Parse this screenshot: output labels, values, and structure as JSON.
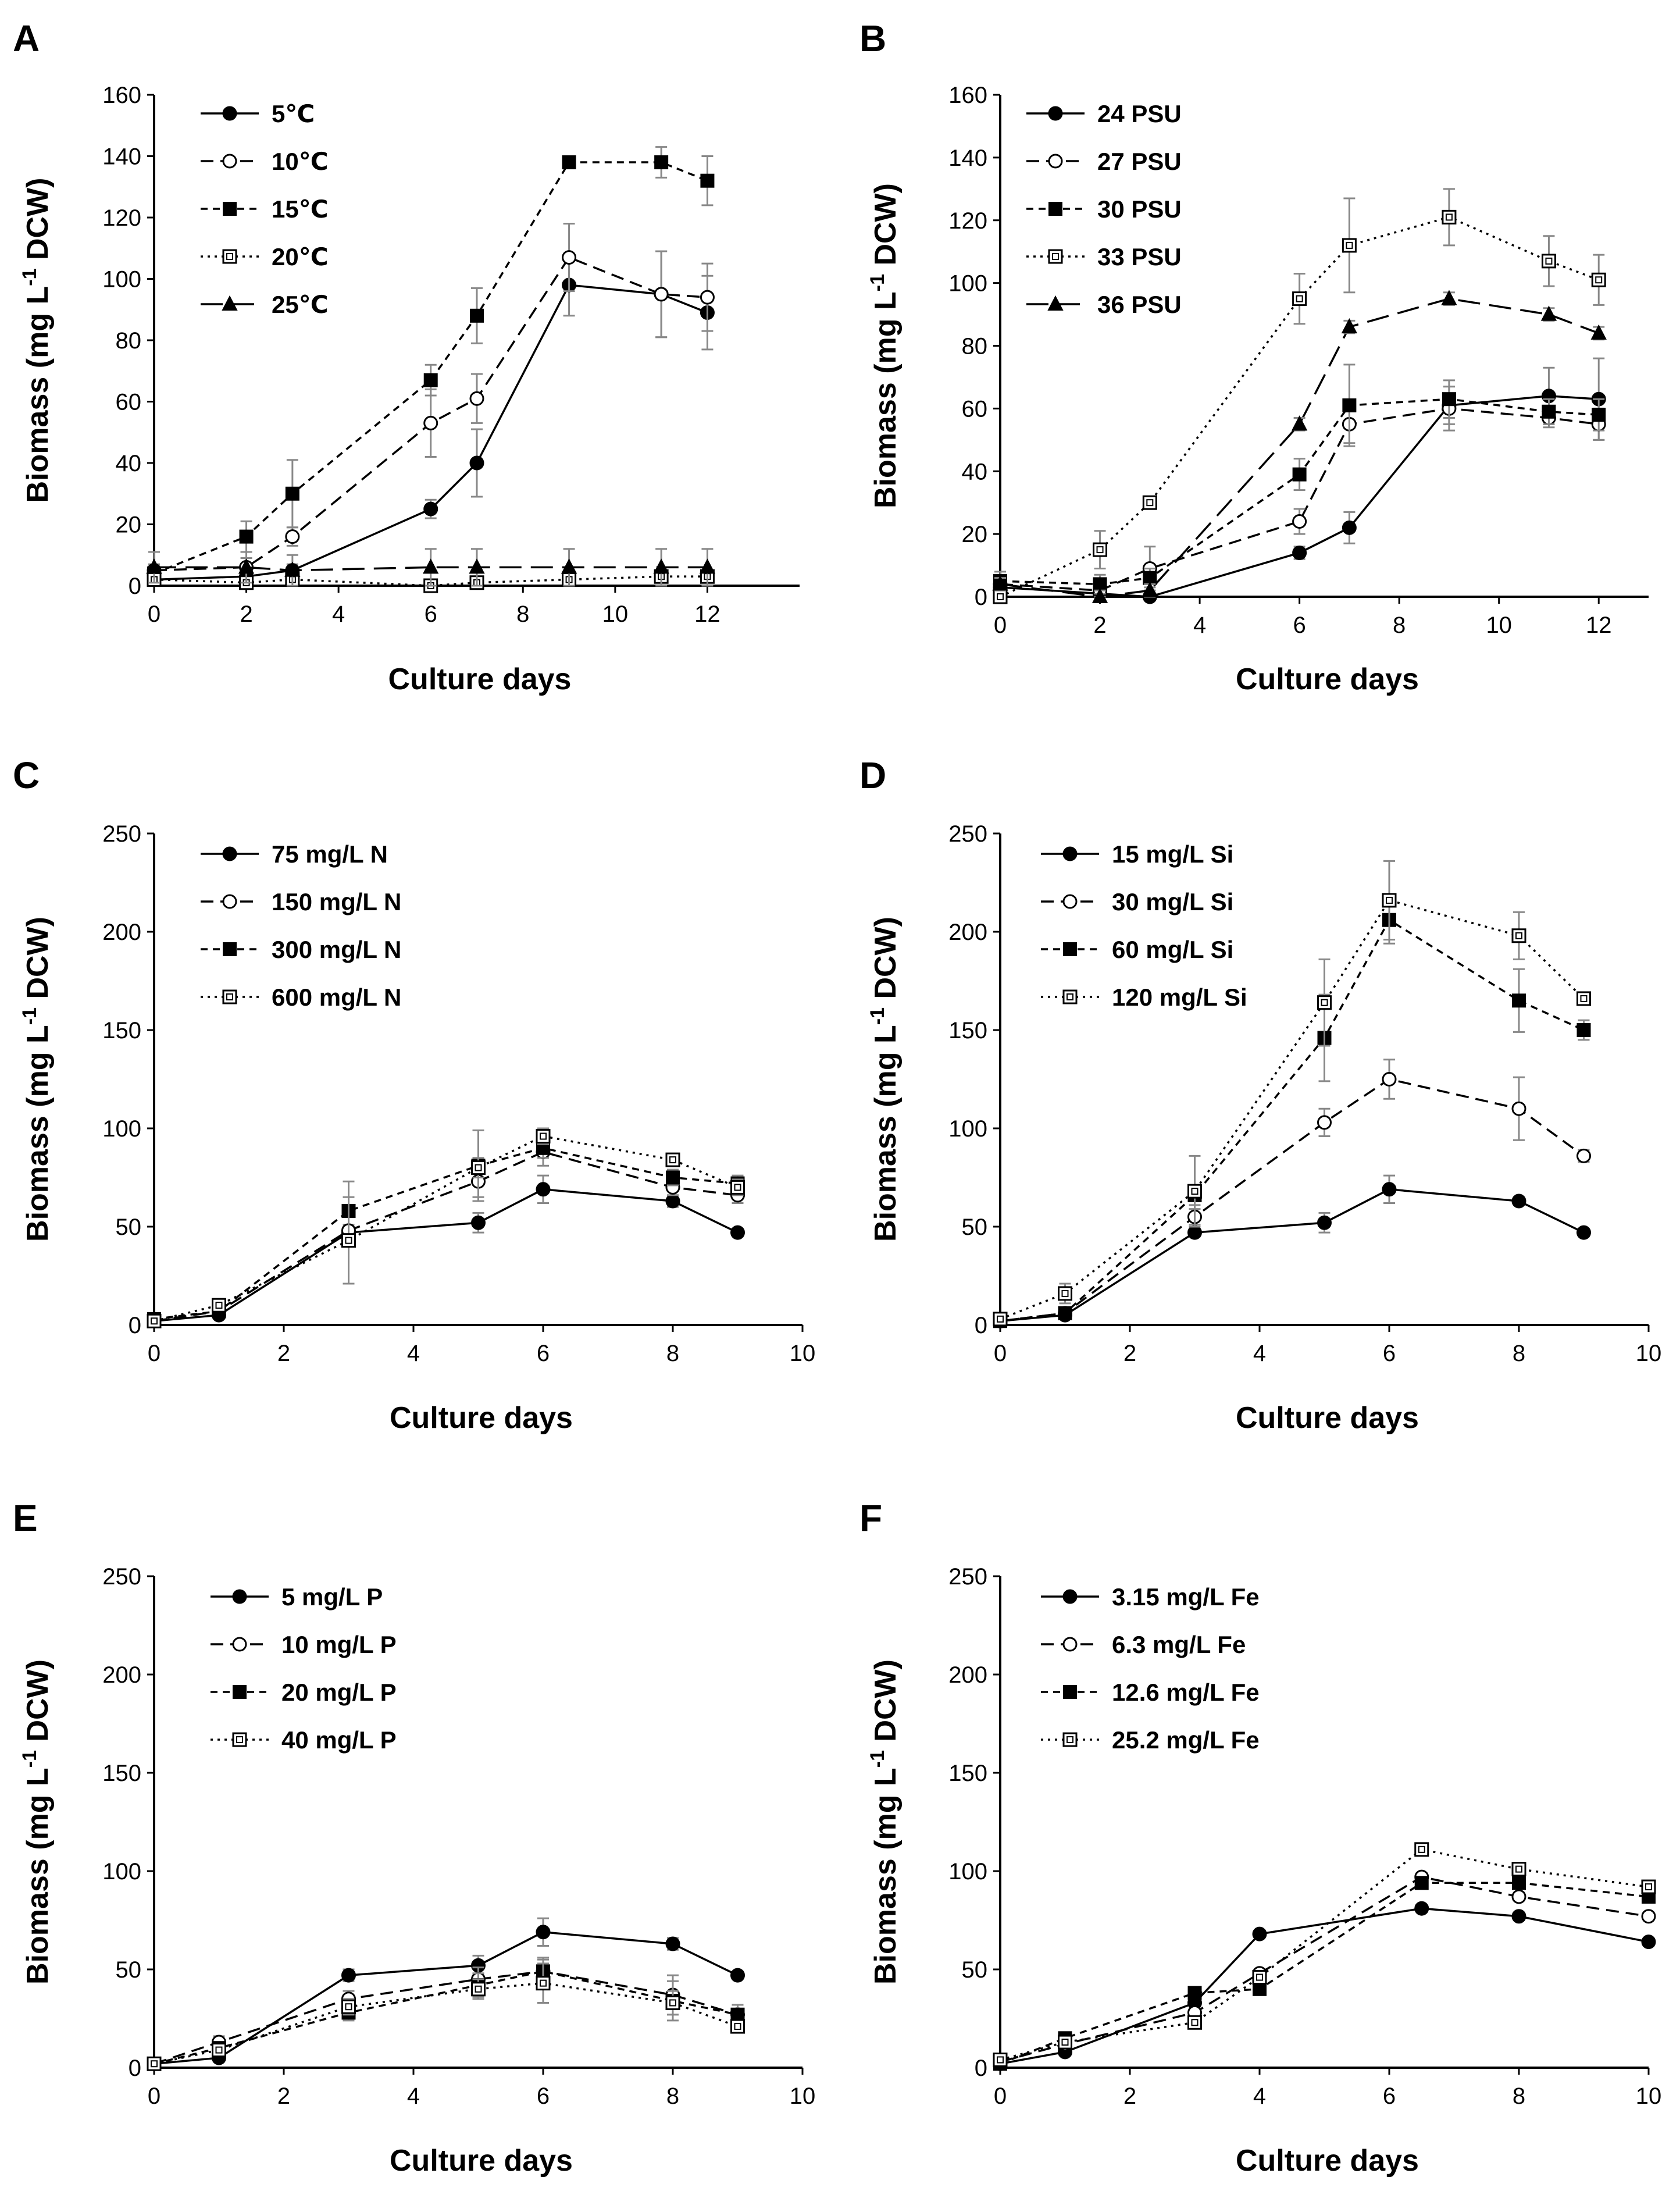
{
  "figure": {
    "background": "#ffffff",
    "ink": "#000000",
    "errorbar_color": "#888888"
  },
  "chart_data": [
    {
      "type": "line",
      "panel": "A",
      "xlabel": "Culture days",
      "ylabel": "Biomass (mg L-1 DCW)",
      "ylabel_parts": [
        "Biomass (mg L",
        "-1",
        " DCW)"
      ],
      "xlim": [
        0,
        14
      ],
      "ylim": [
        0,
        160
      ],
      "xticks": [
        0,
        2,
        4,
        6,
        8,
        10,
        12
      ],
      "yticks": [
        0,
        20,
        40,
        60,
        80,
        100,
        120,
        140,
        160
      ],
      "x": [
        0,
        2,
        3,
        6,
        7,
        9,
        11,
        12
      ],
      "series": [
        {
          "name": "5℃",
          "marker": "filled-circle",
          "dash": "solid",
          "values": [
            2,
            3,
            5,
            25,
            40,
            98,
            95,
            89
          ],
          "err": [
            2,
            2,
            2,
            3,
            11,
            10,
            14,
            12
          ]
        },
        {
          "name": "10℃",
          "marker": "open-circle",
          "dash": "dashed",
          "values": [
            5,
            6,
            16,
            53,
            61,
            107,
            95,
            94
          ],
          "err": [
            2,
            3,
            3,
            11,
            8,
            11,
            14,
            11
          ]
        },
        {
          "name": "15℃",
          "marker": "filled-square",
          "dash": "short-dash",
          "values": [
            4,
            16,
            30,
            67,
            88,
            138,
            138,
            132
          ],
          "err": [
            2,
            5,
            11,
            5,
            9,
            1,
            5,
            8
          ]
        },
        {
          "name": "20℃",
          "marker": "open-square",
          "dash": "dotted",
          "values": [
            2,
            1,
            2,
            0,
            1,
            2,
            3,
            3
          ],
          "err": [
            3,
            2,
            2,
            2,
            2,
            2,
            2,
            2
          ]
        },
        {
          "name": "25℃",
          "marker": "filled-triangle",
          "dash": "long-dash",
          "values": [
            6,
            6,
            5,
            6,
            6,
            6,
            6,
            6
          ],
          "err": [
            5,
            5,
            5,
            6,
            6,
            6,
            6,
            6
          ]
        }
      ]
    },
    {
      "type": "line",
      "panel": "B",
      "xlabel": "Culture days",
      "ylabel": "Biomass (mg L-1 DCW)",
      "ylabel_parts": [
        "Biomass (mg L",
        "-1",
        " DCW)"
      ],
      "xlim": [
        0,
        13
      ],
      "ylim": [
        0,
        160
      ],
      "xticks": [
        0,
        2,
        4,
        6,
        8,
        10,
        12
      ],
      "yticks": [
        0,
        20,
        40,
        60,
        80,
        100,
        120,
        140,
        160
      ],
      "x": [
        0,
        2,
        3,
        6,
        7,
        9,
        11,
        12
      ],
      "series": [
        {
          "name": "24 PSU",
          "marker": "filled-circle",
          "dash": "solid",
          "values": [
            3,
            1,
            0,
            14,
            22,
            61,
            64,
            63
          ],
          "err": [
            2,
            2,
            2,
            2,
            5,
            6,
            9,
            13
          ]
        },
        {
          "name": "27 PSU",
          "marker": "open-circle",
          "dash": "dashed",
          "values": [
            4,
            2,
            9,
            24,
            55,
            60,
            57,
            55
          ],
          "err": [
            3,
            2,
            7,
            4,
            6,
            7,
            3,
            5
          ]
        },
        {
          "name": "30 PSU",
          "marker": "filled-square",
          "dash": "short-dash",
          "values": [
            5,
            4,
            6,
            39,
            61,
            63,
            59,
            58
          ],
          "err": [
            3,
            3,
            3,
            5,
            13,
            6,
            4,
            5
          ]
        },
        {
          "name": "33 PSU",
          "marker": "open-square",
          "dash": "dotted",
          "values": [
            0,
            15,
            30,
            95,
            112,
            121,
            107,
            101
          ],
          "err": [
            2,
            6,
            2,
            8,
            15,
            9,
            8,
            8
          ]
        },
        {
          "name": "36 PSU",
          "marker": "filled-triangle",
          "dash": "long-dash",
          "values": [
            4,
            0,
            2,
            55,
            86,
            95,
            90,
            84
          ],
          "err": [
            2,
            2,
            2,
            2,
            2,
            2,
            2,
            2
          ]
        }
      ]
    },
    {
      "type": "line",
      "panel": "C",
      "xlabel": "Culture days",
      "ylabel": "Biomass (mg L-1 DCW)",
      "ylabel_parts": [
        "Biomass (mg L",
        "-1",
        " DCW)"
      ],
      "xlim": [
        0,
        10
      ],
      "ylim": [
        0,
        250
      ],
      "xticks": [
        0,
        2,
        4,
        6,
        8,
        10
      ],
      "yticks": [
        0,
        50,
        100,
        150,
        200,
        250
      ],
      "x": [
        0,
        1,
        3,
        5,
        6,
        8,
        9
      ],
      "series": [
        {
          "name": "75 mg/L N",
          "marker": "filled-circle",
          "dash": "solid",
          "values": [
            2,
            5,
            47,
            52,
            69,
            63,
            47
          ],
          "err": [
            2,
            2,
            3,
            5,
            7,
            3,
            2
          ]
        },
        {
          "name": "150 mg/L N",
          "marker": "open-circle",
          "dash": "dashed",
          "values": [
            2,
            7,
            48,
            73,
            88,
            70,
            66
          ],
          "err": [
            2,
            2,
            3,
            8,
            7,
            4,
            4
          ]
        },
        {
          "name": "300 mg/L N",
          "marker": "filled-square",
          "dash": "short-dash",
          "values": [
            3,
            7,
            58,
            81,
            90,
            75,
            72
          ],
          "err": [
            2,
            3,
            15,
            18,
            5,
            4,
            4
          ]
        },
        {
          "name": "600 mg/L N",
          "marker": "open-square",
          "dash": "dotted",
          "values": [
            2,
            10,
            43,
            80,
            96,
            84,
            70
          ],
          "err": [
            2,
            3,
            22,
            5,
            4,
            3,
            4
          ]
        }
      ]
    },
    {
      "type": "line",
      "panel": "D",
      "xlabel": "Culture days",
      "ylabel": "Biomass (mg L-1 DCW)",
      "ylabel_parts": [
        "Biomass (mg L",
        "-1",
        " DCW)"
      ],
      "xlim": [
        0,
        10
      ],
      "ylim": [
        0,
        250
      ],
      "xticks": [
        0,
        2,
        4,
        6,
        8,
        10
      ],
      "yticks": [
        0,
        50,
        100,
        150,
        200,
        250
      ],
      "x": [
        0,
        1,
        3,
        5,
        6,
        8,
        9
      ],
      "series": [
        {
          "name": "15 mg/L Si",
          "marker": "filled-circle",
          "dash": "solid",
          "values": [
            2,
            5,
            47,
            52,
            69,
            63,
            47
          ],
          "err": [
            2,
            2,
            2,
            5,
            7,
            2,
            2
          ]
        },
        {
          "name": "30 mg/L Si",
          "marker": "open-circle",
          "dash": "dashed",
          "values": [
            2,
            6,
            55,
            103,
            125,
            110,
            86
          ],
          "err": [
            2,
            2,
            4,
            7,
            10,
            16,
            3
          ]
        },
        {
          "name": "60 mg/L Si",
          "marker": "filled-square",
          "dash": "short-dash",
          "values": [
            2,
            6,
            66,
            146,
            206,
            165,
            150
          ],
          "err": [
            2,
            2,
            5,
            22,
            12,
            16,
            5
          ]
        },
        {
          "name": "120 mg/L Si",
          "marker": "open-square",
          "dash": "dotted",
          "values": [
            3,
            16,
            68,
            164,
            216,
            198,
            166
          ],
          "err": [
            2,
            5,
            18,
            22,
            20,
            12,
            3
          ]
        }
      ]
    },
    {
      "type": "line",
      "panel": "E",
      "xlabel": "Culture days",
      "ylabel": "Biomass (mg L-1 DCW)",
      "ylabel_parts": [
        "Biomass (mg L",
        "-1",
        " DCW)"
      ],
      "xlim": [
        0,
        10
      ],
      "ylim": [
        0,
        250
      ],
      "xticks": [
        0,
        2,
        4,
        6,
        8,
        10
      ],
      "yticks": [
        0,
        50,
        100,
        150,
        200,
        250
      ],
      "x": [
        0,
        1,
        3,
        5,
        6,
        8,
        9
      ],
      "series": [
        {
          "name": "5 mg/L P",
          "marker": "filled-circle",
          "dash": "solid",
          "values": [
            2,
            5,
            47,
            52,
            69,
            63,
            47
          ],
          "err": [
            2,
            2,
            3,
            5,
            7,
            3,
            2
          ]
        },
        {
          "name": "10 mg/L P",
          "marker": "open-circle",
          "dash": "dashed",
          "values": [
            2,
            13,
            35,
            45,
            49,
            37,
            27
          ],
          "err": [
            2,
            3,
            4,
            6,
            6,
            10,
            5
          ]
        },
        {
          "name": "20 mg/L P",
          "marker": "filled-square",
          "dash": "short-dash",
          "values": [
            2,
            10,
            28,
            42,
            49,
            34,
            27
          ],
          "err": [
            2,
            3,
            4,
            6,
            7,
            10,
            5
          ]
        },
        {
          "name": "40 mg/L P",
          "marker": "open-square",
          "dash": "dotted",
          "values": [
            2,
            9,
            31,
            40,
            43,
            33,
            21
          ],
          "err": [
            2,
            3,
            4,
            5,
            10,
            6,
            3
          ]
        }
      ]
    },
    {
      "type": "line",
      "panel": "F",
      "xlabel": "Culture days",
      "ylabel": "Biomass (mg L-1 DCW)",
      "ylabel_parts": [
        "Biomass (mg L",
        "-1",
        " DCW)"
      ],
      "xlim": [
        0,
        10
      ],
      "ylim": [
        0,
        250
      ],
      "xticks": [
        0,
        2,
        4,
        6,
        8,
        10
      ],
      "yticks": [
        0,
        50,
        100,
        150,
        200,
        250
      ],
      "x": [
        0,
        1,
        3,
        4,
        6.5,
        8,
        10
      ],
      "series": [
        {
          "name": "3.15 mg/L Fe",
          "marker": "filled-circle",
          "dash": "solid",
          "values": [
            2,
            8,
            33,
            68,
            81,
            77,
            64
          ],
          "err": [
            1,
            1,
            2,
            2,
            2,
            2,
            2
          ]
        },
        {
          "name": "6.3 mg/L Fe",
          "marker": "open-circle",
          "dash": "dashed",
          "values": [
            3,
            12,
            28,
            48,
            97,
            87,
            77
          ],
          "err": [
            1,
            1,
            2,
            2,
            2,
            2,
            2
          ]
        },
        {
          "name": "12.6 mg/L Fe",
          "marker": "filled-square",
          "dash": "short-dash",
          "values": [
            2,
            15,
            38,
            40,
            94,
            94,
            87
          ],
          "err": [
            1,
            1,
            2,
            2,
            2,
            2,
            2
          ]
        },
        {
          "name": "25.2 mg/L Fe",
          "marker": "open-square",
          "dash": "dotted",
          "values": [
            4,
            13,
            23,
            46,
            111,
            101,
            92
          ],
          "err": [
            1,
            1,
            2,
            2,
            2,
            2,
            2
          ]
        }
      ]
    }
  ]
}
